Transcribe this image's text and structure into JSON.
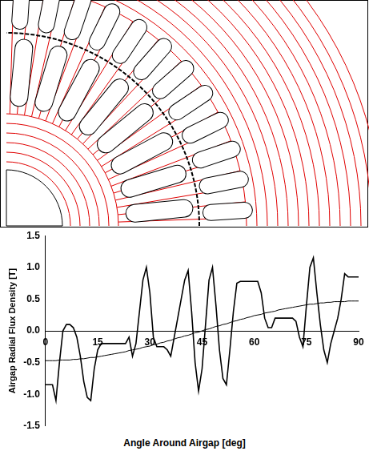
{
  "chart_data": {
    "type": "line",
    "x_label": "Angle Around Airgap [deg]",
    "y_label": "Airgap Radial Flux Density [T]",
    "grid": false,
    "x": [
      0,
      1,
      2,
      3,
      4,
      5,
      6,
      7,
      8,
      9,
      10,
      11,
      12,
      13,
      14,
      15,
      16,
      17,
      18,
      19,
      20,
      21,
      22,
      23,
      24,
      25,
      26,
      27,
      28,
      29,
      30,
      31,
      32,
      33,
      34,
      35,
      36,
      37,
      38,
      39,
      40,
      41,
      42,
      43,
      44,
      45,
      46,
      47,
      48,
      49,
      50,
      51,
      52,
      53,
      54,
      55,
      56,
      57,
      58,
      59,
      60,
      61,
      62,
      63,
      64,
      65,
      66,
      67,
      68,
      69,
      70,
      71,
      72,
      73,
      74,
      75,
      76,
      77,
      78,
      79,
      80,
      81,
      82,
      83,
      84,
      85,
      86,
      87,
      88,
      89,
      90
    ],
    "series": [
      {
        "color": "#000000",
        "line_style": "solid",
        "values": [
          -0.85,
          -0.85,
          -0.85,
          -1.1,
          -0.5,
          0,
          0.1,
          0.1,
          0.05,
          -0.1,
          -0.4,
          -0.8,
          -1.05,
          -1.1,
          -0.6,
          -0.3,
          -0.2,
          -0.2,
          -0.2,
          -0.2,
          -0.2,
          -0.2,
          -0.2,
          -0.2,
          -0.1,
          -0.4,
          -0.2,
          0.3,
          0.8,
          1.0,
          0.6,
          -0.1,
          -0.25,
          -0.25,
          -0.25,
          -0.3,
          -0.4,
          -0.1,
          0.2,
          0.5,
          0.8,
          0.95,
          0.3,
          -0.5,
          -0.95,
          -0.6,
          0.1,
          0.8,
          1.0,
          0.4,
          -0.3,
          -0.75,
          -0.85,
          -0.3,
          0.3,
          0.75,
          0.78,
          0.78,
          0.78,
          0.78,
          0.78,
          0.78,
          0.6,
          0.2,
          0.05,
          0.05,
          0.2,
          0.2,
          0.2,
          0.2,
          0.2,
          0.2,
          0.15,
          -0.1,
          -0.25,
          0.4,
          1.0,
          1.15,
          0.6,
          0.1,
          -0.3,
          -0.5,
          -0.2,
          0,
          0.2,
          0.5,
          0.9,
          0.85,
          0.85,
          0.85,
          0.85
        ]
      },
      {
        "color": "#000000",
        "line_style": "solid",
        "values": [
          -0.47,
          -0.47,
          -0.47,
          -0.47,
          -0.46,
          -0.46,
          -0.46,
          -0.46,
          -0.45,
          -0.45,
          -0.44,
          -0.44,
          -0.43,
          -0.42,
          -0.42,
          -0.41,
          -0.4,
          -0.39,
          -0.38,
          -0.37,
          -0.36,
          -0.35,
          -0.34,
          -0.33,
          -0.31,
          -0.3,
          -0.29,
          -0.28,
          -0.26,
          -0.25,
          -0.24,
          -0.22,
          -0.21,
          -0.19,
          -0.18,
          -0.16,
          -0.15,
          -0.13,
          -0.11,
          -0.1,
          -0.08,
          -0.07,
          -0.05,
          -0.03,
          -0.02,
          0,
          0.02,
          0.03,
          0.05,
          0.07,
          0.08,
          0.1,
          0.11,
          0.13,
          0.15,
          0.16,
          0.18,
          0.19,
          0.21,
          0.22,
          0.24,
          0.25,
          0.26,
          0.28,
          0.29,
          0.3,
          0.31,
          0.33,
          0.34,
          0.35,
          0.36,
          0.37,
          0.38,
          0.39,
          0.4,
          0.41,
          0.42,
          0.42,
          0.43,
          0.44,
          0.44,
          0.45,
          0.45,
          0.46,
          0.46,
          0.46,
          0.46,
          0.47,
          0.47,
          0.47,
          0.47
        ]
      }
    ],
    "xlim": [
      0,
      90
    ],
    "xticks": [
      0,
      15,
      30,
      45,
      60,
      75,
      90
    ],
    "ylim": [
      -1.5,
      1.5
    ],
    "yticks": [
      -1.5,
      {
        "value": -1,
        "label": "-1.0"
      },
      -0.5,
      {
        "value": 0,
        "label": "0.0"
      },
      0.5,
      {
        "value": 1,
        "label": "1.0"
      },
      1.5
    ]
  }
}
